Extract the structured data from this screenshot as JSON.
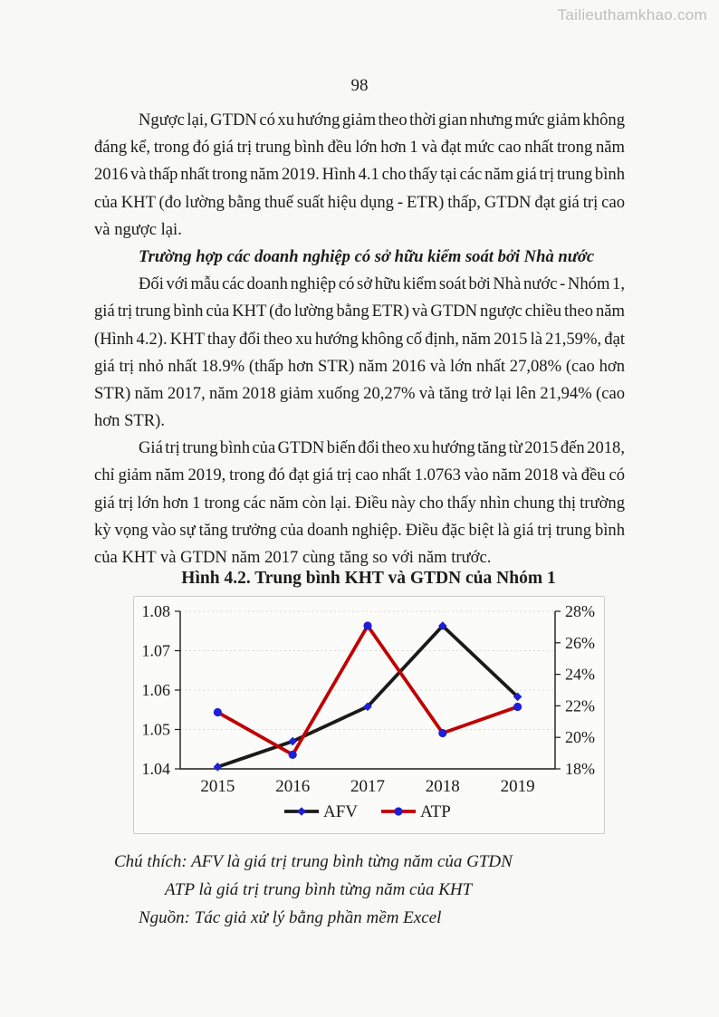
{
  "page": {
    "watermark": "Tailieuthamkhao.com",
    "page_number": "98"
  },
  "body": {
    "p1_lines": [
      "Ngược lại, GTDN có xu hướng giảm theo thời gian nhưng mức giảm không",
      "đáng kể, trong đó giá trị trung bình đều lớn hơn 1 và đạt mức cao nhất trong năm",
      "2016 và thấp nhất trong năm 2019. Hình 4.1 cho thấy tại các năm giá trị trung bình",
      "của KHT (đo lường bằng thuế suất hiệu dụng - ETR) thấp, GTDN đạt giá trị cao",
      "và ngược lại."
    ],
    "heading": "Trường hợp các doanh nghiệp có sở hữu kiểm soát bởi Nhà nước",
    "p2_lines": [
      "Đối với mẫu các doanh nghiệp có sở hữu kiểm soát bởi Nhà nước - Nhóm 1,",
      "giá trị trung bình của KHT (đo lường bằng ETR) và GTDN ngược chiều theo năm",
      "(Hình 4.2). KHT thay đổi theo xu hướng không cố định, năm 2015 là 21,59%, đạt",
      "giá trị nhỏ nhất 18.9% (thấp hơn STR) năm 2016 và lớn nhất 27,08% (cao hơn",
      "STR) năm 2017, năm 2018 giảm xuống 20,27% và tăng trở lại lên 21,94% (cao",
      "hơn STR)."
    ],
    "p3_lines": [
      "Giá trị trung bình của GTDN biến đổi theo xu hướng tăng từ 2015 đến 2018,",
      "chỉ giảm năm 2019, trong đó đạt giá trị cao nhất 1.0763 vào năm 2018 và đều có",
      "giá trị lớn hơn 1 trong các năm còn lại. Điều này cho thấy nhìn chung thị trường",
      "kỳ vọng vào sự tăng trưởng của doanh nghiệp. Điều đặc biệt là giá trị trung bình",
      "của KHT và GTDN năm 2017 cùng tăng so với năm trước."
    ]
  },
  "figure": {
    "title": "Hình 4.2. Trung bình KHT và GTDN của Nhóm 1",
    "notes": [
      "Chú thích: AFV là giá trị trung bình từng năm của GTDN",
      "ATP là giá trị trung bình từng năm của KHT",
      "Nguồn: Tác giả xử lý bằng phần mềm Excel"
    ]
  },
  "chart_data": {
    "type": "line",
    "title": "Hình 4.2. Trung bình KHT và GTDN của Nhóm 1",
    "categories": [
      "2015",
      "2016",
      "2017",
      "2018",
      "2019"
    ],
    "series": [
      {
        "name": "AFV",
        "axis": "left",
        "color": "#1a1a1a",
        "marker": "diamond",
        "marker_color": "#1f1fd6",
        "values": [
          1.0405,
          1.047,
          1.0558,
          1.0763,
          1.0583
        ]
      },
      {
        "name": "ATP",
        "axis": "right",
        "color": "#c00000",
        "marker": "circle",
        "marker_color": "#1f1fd6",
        "values": [
          21.59,
          18.9,
          27.08,
          20.27,
          21.94
        ]
      }
    ],
    "left_axis": {
      "min": 1.04,
      "max": 1.08,
      "ticks": [
        "1.08",
        "1.07",
        "1.06",
        "1.05",
        "1.04"
      ]
    },
    "right_axis": {
      "min": 18,
      "max": 28,
      "ticks": [
        "28%",
        "26%",
        "24%",
        "22%",
        "20%",
        "18%"
      ]
    },
    "grid": "horizontal-dashed",
    "grid_color": "#d8d8d8",
    "legend_position": "bottom"
  }
}
